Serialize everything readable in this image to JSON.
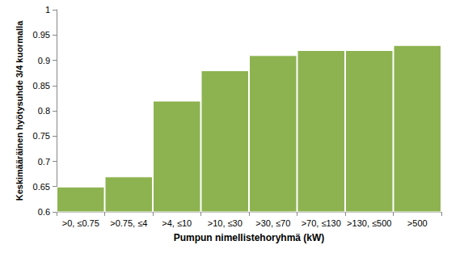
{
  "chart_data": {
    "type": "bar",
    "x_label": "Pumpun nimellistehoryhmä (kW)",
    "y_label": "Keskimääräinen hyötysuhde 3/4 kuormalla",
    "categories": [
      ">0, ≤0.75",
      ">0.75, ≤4",
      ">4, ≤10",
      ">10, ≤30",
      ">30, ≤70",
      ">70, ≤130",
      ">130, ≤500",
      ">500"
    ],
    "values": [
      0.65,
      0.67,
      0.82,
      0.88,
      0.91,
      0.92,
      0.92,
      0.93
    ],
    "color": "#8db350",
    "ylim": [
      0.6,
      1
    ],
    "yticks": [
      0.6,
      0.65,
      0.7,
      0.75,
      0.8,
      0.85,
      0.9,
      0.95,
      1
    ],
    "grid": false
  }
}
